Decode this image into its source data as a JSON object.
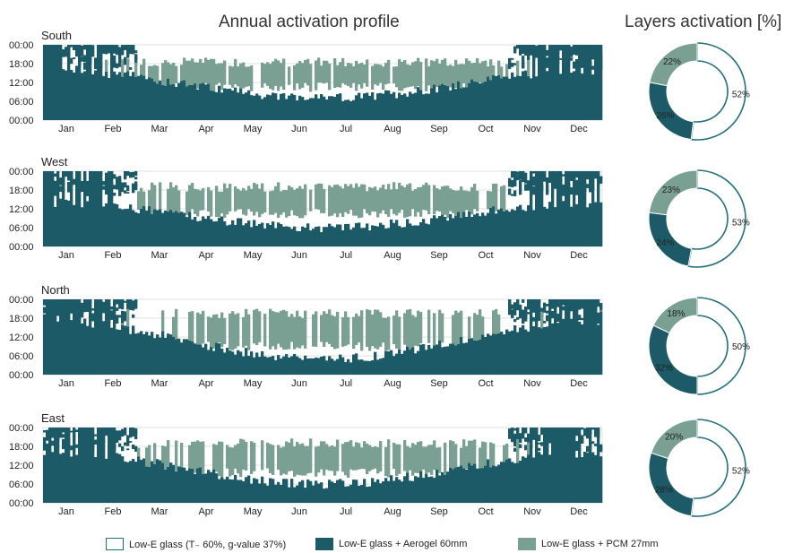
{
  "page_title": "Annual activation profile",
  "donut_title": "Layers activation [%]",
  "colors": {
    "lowE": "#ffffff",
    "lowE_border": "#21707c",
    "aerogel": "#1b5a66",
    "pcm": "#79a093",
    "grid": "#d9d9d9",
    "text": "#222222"
  },
  "legend": [
    {
      "label": "Low-E glass (T₋ 60%, g-value 37%)",
      "color_key": "lowE"
    },
    {
      "label": "Low-E glass + Aerogel 60mm",
      "color_key": "aerogel"
    },
    {
      "label": "Low-E glass + PCM 27mm",
      "color_key": "pcm"
    }
  ],
  "chart_data": [
    {
      "type": "heatmap",
      "title": "South",
      "x_ticks": [
        "Jan",
        "Feb",
        "Mar",
        "Apr",
        "May",
        "Jun",
        "Jul",
        "Aug",
        "Sep",
        "Oct",
        "Nov",
        "Dec"
      ],
      "y_ticks": [
        "00:00",
        "18:00",
        "12:00",
        "06:00",
        "00:00"
      ],
      "series": [
        {
          "name": "Low-E glass + Aerogel 60mm",
          "color_key": "aerogel"
        },
        {
          "name": "Low-E glass + PCM 27mm",
          "color_key": "pcm"
        }
      ],
      "pcm_band": {
        "from": 10.5,
        "to": 18.5
      },
      "pcm_months": [
        0.0,
        0.15,
        0.82,
        0.88,
        0.85,
        0.9,
        0.92,
        0.88,
        0.86,
        0.8,
        0.2,
        0.0
      ],
      "aerogel_winter_top": 16,
      "aerogel_summer_top": 7
    },
    {
      "type": "heatmap",
      "title": "West",
      "x_ticks": [
        "Jan",
        "Feb",
        "Mar",
        "Apr",
        "May",
        "Jun",
        "Jul",
        "Aug",
        "Sep",
        "Oct",
        "Nov",
        "Dec"
      ],
      "y_ticks": [
        "00:00",
        "18:00",
        "12:00",
        "06:00",
        "00:00"
      ],
      "series": [
        {
          "name": "Low-E glass + Aerogel 60mm",
          "color_key": "aerogel"
        },
        {
          "name": "Low-E glass + PCM 27mm",
          "color_key": "pcm"
        }
      ],
      "pcm_band": {
        "from": 10.5,
        "to": 19.0
      },
      "pcm_months": [
        0.0,
        0.1,
        0.75,
        0.85,
        0.9,
        0.92,
        0.93,
        0.92,
        0.88,
        0.78,
        0.15,
        0.0
      ],
      "aerogel_winter_top": 14,
      "aerogel_summer_top": 6
    },
    {
      "type": "heatmap",
      "title": "North",
      "x_ticks": [
        "Jan",
        "Feb",
        "Mar",
        "Apr",
        "May",
        "Jun",
        "Jul",
        "Aug",
        "Sep",
        "Oct",
        "Nov",
        "Dec"
      ],
      "y_ticks": [
        "00:00",
        "18:00",
        "12:00",
        "06:00",
        "00:00"
      ],
      "series": [
        {
          "name": "Low-E glass + Aerogel 60mm",
          "color_key": "aerogel"
        },
        {
          "name": "Low-E glass + PCM 27mm",
          "color_key": "pcm"
        }
      ],
      "pcm_band": {
        "from": 9.0,
        "to": 19.5
      },
      "pcm_months": [
        0.0,
        0.05,
        0.35,
        0.6,
        0.8,
        0.85,
        0.88,
        0.8,
        0.7,
        0.4,
        0.05,
        0.0
      ],
      "aerogel_winter_top": 17,
      "aerogel_summer_top": 5
    },
    {
      "type": "heatmap",
      "title": "East",
      "x_ticks": [
        "Jan",
        "Feb",
        "Mar",
        "Apr",
        "May",
        "Jun",
        "Jul",
        "Aug",
        "Sep",
        "Oct",
        "Nov",
        "Dec"
      ],
      "y_ticks": [
        "00:00",
        "18:00",
        "12:00",
        "06:00",
        "00:00"
      ],
      "series": [
        {
          "name": "Low-E glass + Aerogel 60mm",
          "color_key": "aerogel"
        },
        {
          "name": "Low-E glass + PCM 27mm",
          "color_key": "pcm"
        }
      ],
      "pcm_band": {
        "from": 9.5,
        "to": 19.0
      },
      "pcm_months": [
        0.0,
        0.05,
        0.5,
        0.7,
        0.85,
        0.9,
        0.9,
        0.85,
        0.8,
        0.55,
        0.05,
        0.0
      ],
      "aerogel_winter_top": 16,
      "aerogel_summer_top": 6
    },
    {
      "type": "pie",
      "title": "",
      "labels": [
        "Low-E glass (T₋ 60%, g-value 37%)",
        "Low-E glass + Aerogel 60mm",
        "Low-E glass + PCM 27mm"
      ],
      "values": [
        52,
        26,
        22
      ],
      "value_labels": [
        "52%",
        "26%",
        "22%"
      ]
    },
    {
      "type": "pie",
      "title": "",
      "labels": [
        "Low-E glass (T₋ 60%, g-value 37%)",
        "Low-E glass + Aerogel 60mm",
        "Low-E glass + PCM 27mm"
      ],
      "values": [
        53,
        24,
        23
      ],
      "value_labels": [
        "53%",
        "24%",
        "23%"
      ]
    },
    {
      "type": "pie",
      "title": "",
      "labels": [
        "Low-E glass (T₋ 60%, g-value 37%)",
        "Low-E glass + Aerogel 60mm",
        "Low-E glass + PCM 27mm"
      ],
      "values": [
        50,
        32,
        18
      ],
      "value_labels": [
        "50%",
        "32%",
        "18%"
      ]
    },
    {
      "type": "pie",
      "title": "",
      "labels": [
        "Low-E glass (T₋ 60%, g-value 37%)",
        "Low-E glass + Aerogel 60mm",
        "Low-E glass + PCM 27mm"
      ],
      "values": [
        52,
        28,
        20
      ],
      "value_labels": [
        "52%",
        "28%",
        "20%"
      ]
    }
  ]
}
